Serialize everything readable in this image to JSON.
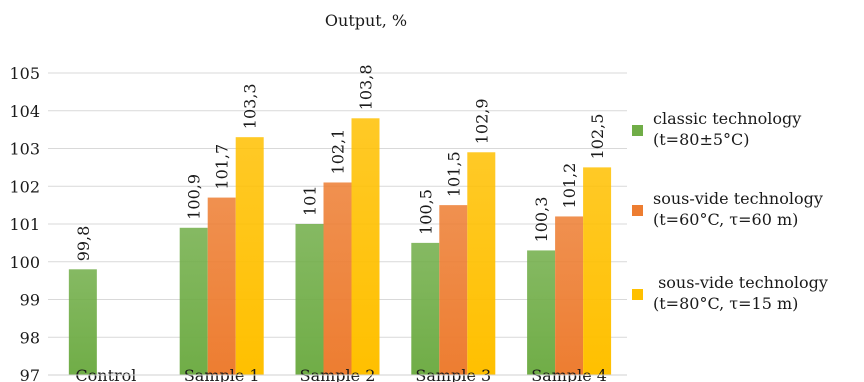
{
  "chart_data": {
    "type": "bar",
    "title": "Output, %",
    "categories": [
      "Control",
      "Sample 1",
      "Sample 2",
      "Sample 3",
      "Sample 4"
    ],
    "ylim": [
      97,
      105
    ],
    "yticks": [
      "97",
      "98",
      "99",
      "100",
      "101",
      "102",
      "103",
      "104",
      "105"
    ],
    "grid": true,
    "legend_position": "right",
    "series": [
      {
        "name_line1": "classic technology",
        "name_line2": "(t=80±5°C)",
        "color": "#70AD47",
        "values": [
          99.8,
          100.9,
          101.0,
          100.5,
          100.3
        ],
        "labels": [
          "99,8",
          "100,9",
          "101",
          "100,5",
          "100,3"
        ]
      },
      {
        "name_line1": "sous-vide technology",
        "name_line2": "(t=60°C, τ=60 m)",
        "color": "#ED7D31",
        "values": [
          null,
          101.7,
          102.1,
          101.5,
          101.2
        ],
        "labels": [
          null,
          "101,7",
          "102,1",
          "101,5",
          "101,2"
        ]
      },
      {
        "name_line1": " sous-vide technology",
        "name_line2": "(t=80°C, τ=15 m)",
        "color": "#FFC000",
        "values": [
          null,
          103.3,
          103.8,
          102.9,
          102.5
        ],
        "labels": [
          null,
          "103,3",
          "103,8",
          "102,9",
          "102,5"
        ]
      }
    ]
  }
}
